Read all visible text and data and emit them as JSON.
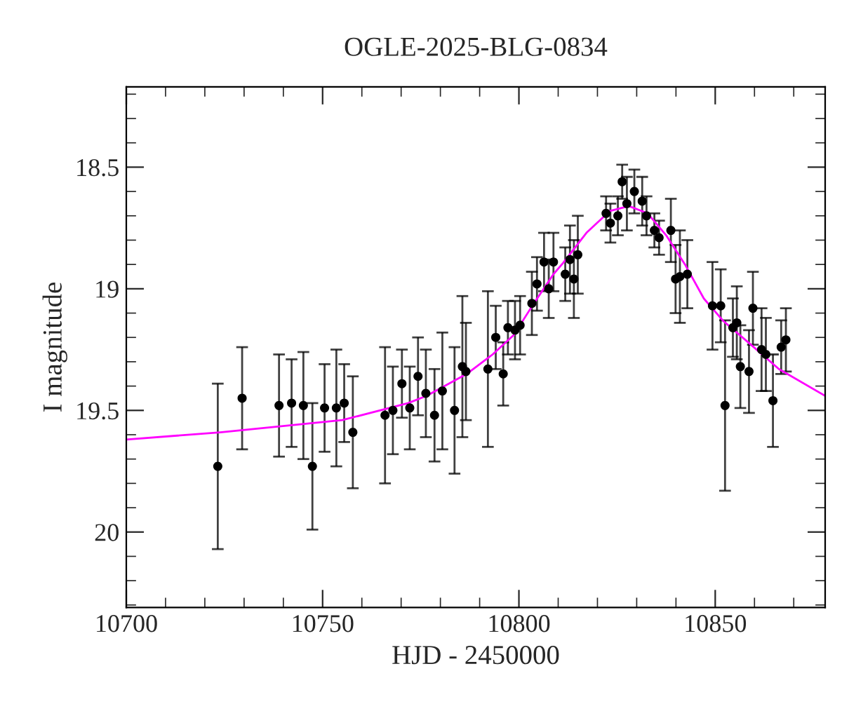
{
  "chart_data": {
    "type": "scatter",
    "title": "OGLE-2025-BLG-0834",
    "xlabel": "HJD - 2450000",
    "ylabel": "I magnitude",
    "xlim": [
      10700,
      10878
    ],
    "ylim": [
      20.31,
      18.17
    ],
    "xticks": [
      10700,
      10750,
      10800,
      10850
    ],
    "yticks": [
      {
        "value": 18.5,
        "label": "18.5"
      },
      {
        "value": 19,
        "label": "19"
      },
      {
        "value": 19.5,
        "label": "19.5"
      },
      {
        "value": 20,
        "label": "20"
      }
    ],
    "marker": "circle",
    "grid": false,
    "legend": false,
    "series": [
      {
        "color": "#000000",
        "x": [
          10723.3,
          10729.5,
          10738.9,
          10742.1,
          10745.1,
          10747.4,
          10750.5,
          10753.5,
          10755.5,
          10757.7,
          10765.9,
          10767.9,
          10770.2,
          10772.2,
          10774.3,
          10776.3,
          10778.5,
          10780.5,
          10783.6,
          10785.6,
          10786.5,
          10792.1,
          10794.1,
          10796.0,
          10797.2,
          10799.0,
          10800.3,
          10803.3,
          10804.6,
          10806.4,
          10807.6,
          10808.8,
          10811.8,
          10813.0,
          10814.0,
          10815.0,
          10822.2,
          10823.3,
          10825.2,
          10826.3,
          10827.5,
          10829.4,
          10831.4,
          10832.5,
          10834.5,
          10835.7,
          10838.7,
          10839.9,
          10841.0,
          10842.9,
          10849.3,
          10851.4,
          10852.5,
          10854.5,
          10855.5,
          10856.4,
          10858.6,
          10859.6,
          10861.8,
          10862.9,
          10864.7,
          10866.8,
          10868.0
        ],
        "values": [
          19.73,
          19.45,
          19.48,
          19.47,
          19.48,
          19.73,
          19.49,
          19.49,
          19.47,
          19.59,
          19.52,
          19.5,
          19.39,
          19.49,
          19.36,
          19.43,
          19.52,
          19.42,
          19.5,
          19.32,
          19.34,
          19.33,
          19.2,
          19.35,
          19.16,
          19.17,
          19.15,
          19.06,
          18.98,
          18.89,
          19.0,
          18.89,
          18.94,
          18.88,
          18.96,
          18.86,
          18.69,
          18.73,
          18.7,
          18.56,
          18.65,
          18.6,
          18.64,
          18.7,
          18.76,
          18.79,
          18.76,
          18.96,
          18.95,
          18.94,
          19.07,
          19.07,
          19.48,
          19.16,
          19.14,
          19.32,
          19.34,
          19.08,
          19.25,
          19.27,
          19.46,
          19.24,
          19.21
        ],
        "errors": [
          0.34,
          0.21,
          0.21,
          0.18,
          0.22,
          0.26,
          0.18,
          0.24,
          0.16,
          0.23,
          0.28,
          0.18,
          0.14,
          0.17,
          0.16,
          0.18,
          0.19,
          0.24,
          0.26,
          0.29,
          0.2,
          0.32,
          0.13,
          0.13,
          0.11,
          0.12,
          0.12,
          0.13,
          0.11,
          0.12,
          0.12,
          0.12,
          0.11,
          0.14,
          0.16,
          0.16,
          0.07,
          0.08,
          0.08,
          0.07,
          0.11,
          0.09,
          0.1,
          0.08,
          0.07,
          0.07,
          0.13,
          0.14,
          0.19,
          0.14,
          0.18,
          0.15,
          0.35,
          0.12,
          0.15,
          0.17,
          0.17,
          0.15,
          0.17,
          0.15,
          0.19,
          0.11,
          0.13
        ]
      },
      {
        "type": "line",
        "color": "#ff00ff",
        "marker": "none",
        "line_style": "solid",
        "x": [
          10700,
          10723.9,
          10755,
          10771.8,
          10776.5,
          10786.7,
          10793.3,
          10798.7,
          10803.4,
          10808.8,
          10811.2,
          10817.2,
          10823.2,
          10828,
          10832.8,
          10837.5,
          10842.3,
          10847.1,
          10851.9,
          10859.1,
          10866.2,
          10878
        ],
        "values": [
          19.62,
          19.59,
          19.54,
          19.47,
          19.44,
          19.35,
          19.27,
          19.19,
          19.07,
          18.94,
          18.895,
          18.77,
          18.68,
          18.66,
          18.69,
          18.78,
          18.9,
          19.04,
          19.13,
          19.23,
          19.33,
          19.44
        ]
      }
    ]
  }
}
